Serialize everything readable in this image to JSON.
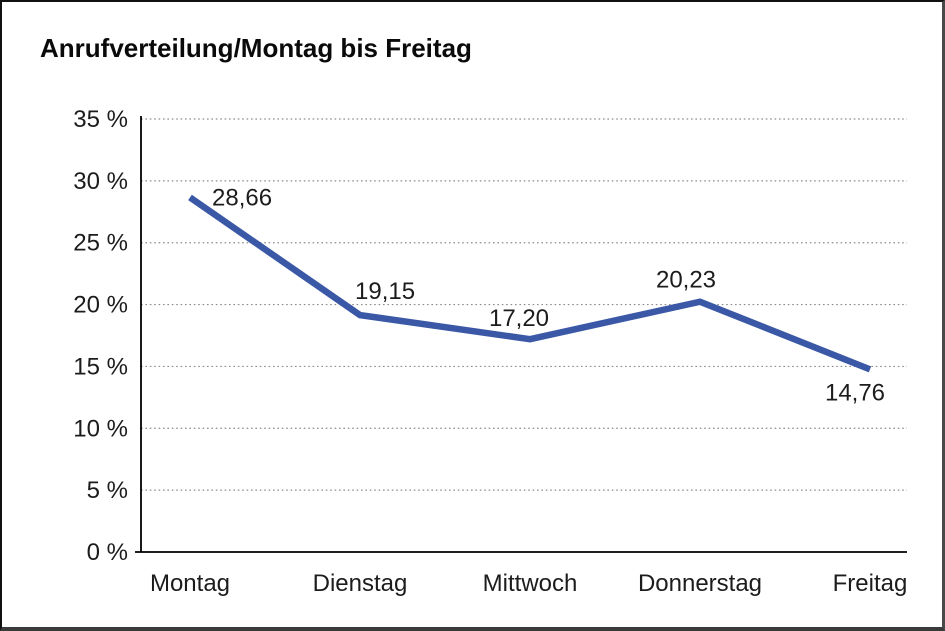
{
  "chart": {
    "title": "Anrufverteilung/Montag bis Freitag"
  },
  "chart_data": {
    "type": "line",
    "title": "Anrufverteilung/Montag bis Freitag",
    "categories": [
      "Montag",
      "Dienstag",
      "Mittwoch",
      "Donnerstag",
      "Freitag"
    ],
    "values": [
      28.66,
      19.15,
      17.2,
      20.23,
      14.76
    ],
    "point_labels": [
      "28,66",
      "19,15",
      "17,20",
      "20,23",
      "14,76"
    ],
    "xlabel": "",
    "ylabel": "",
    "ylim": [
      0,
      35
    ],
    "ystep": 5,
    "ytick_labels": [
      "0 %",
      "5 %",
      "10 %",
      "15 %",
      "20 %",
      "25 %",
      "30 %",
      "35 %"
    ],
    "grid": "horizontal-dotted",
    "legend": "none",
    "line_color": "#3b58a7"
  },
  "colors": {
    "line": "#3b58a7",
    "grid": "#8c8c8c",
    "axis": "#000000",
    "text": "#1c1c1c",
    "background": "#ffffff"
  }
}
